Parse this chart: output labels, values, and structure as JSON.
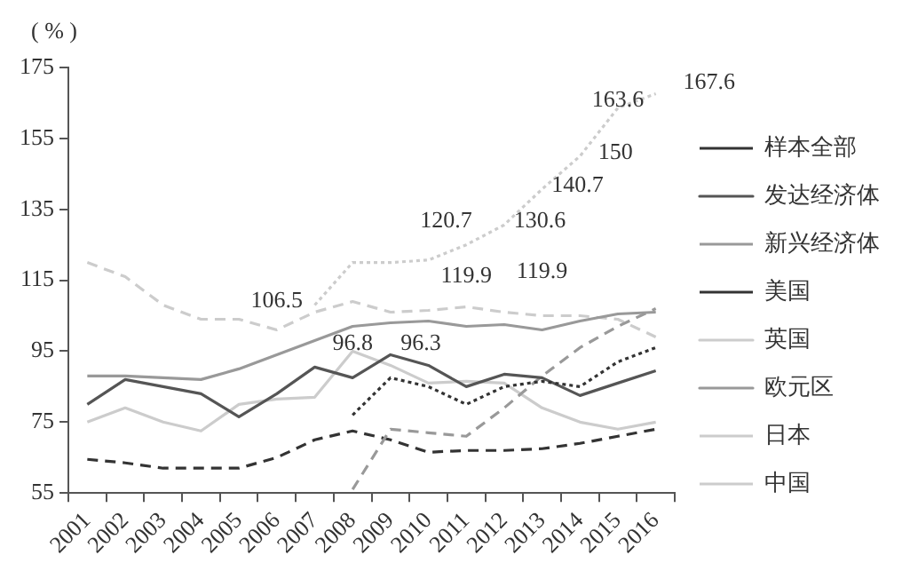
{
  "chart_data": {
    "type": "line",
    "ylabel": "( % )",
    "categories": [
      "2001",
      "2002",
      "2003",
      "2004",
      "2005",
      "2006",
      "2007",
      "2008",
      "2009",
      "2010",
      "2011",
      "2012",
      "2013",
      "2014",
      "2015",
      "2016"
    ],
    "series": [
      {
        "name": "样本全部",
        "color": "#333333",
        "line_style": "dotted",
        "values": [
          null,
          null,
          null,
          null,
          null,
          null,
          null,
          77,
          87.5,
          85,
          80,
          85,
          86.5,
          85,
          92,
          96
        ]
      },
      {
        "name": "发达经济体",
        "color": "#555555",
        "line_style": "solid",
        "values": [
          80,
          87,
          85,
          83,
          76.5,
          83,
          90.5,
          87.5,
          94,
          91,
          85,
          88.5,
          87.5,
          82.5,
          86,
          89.5
        ]
      },
      {
        "name": "新兴经济体",
        "color": "#999999",
        "line_style": "dashed",
        "values": [
          null,
          null,
          null,
          null,
          null,
          null,
          null,
          56,
          73,
          72,
          71,
          79,
          88,
          96,
          102,
          107
        ]
      },
      {
        "name": "美国",
        "color": "#333333",
        "line_style": "dashed",
        "values": [
          64.5,
          63.5,
          62,
          62,
          62,
          65,
          70,
          72.5,
          70,
          66.5,
          67,
          67,
          67.5,
          69,
          71,
          73
        ]
      },
      {
        "name": "英国",
        "color": "#cccccc",
        "line_style": "solid",
        "values": [
          75,
          79,
          75,
          72.5,
          80,
          81.5,
          82,
          95,
          91,
          86,
          86.5,
          86,
          79,
          75,
          73,
          75
        ]
      },
      {
        "name": "欧元区",
        "color": "#999999",
        "line_style": "solid",
        "values": [
          88,
          88,
          87.5,
          87,
          90,
          94,
          98,
          102,
          103,
          103.5,
          102,
          102.5,
          101,
          103.5,
          105.5,
          106
        ]
      },
      {
        "name": "日本",
        "color": "#cccccc",
        "line_style": "dashed",
        "values": [
          120,
          116,
          108,
          104,
          104,
          101,
          106,
          109,
          106,
          106.5,
          107.5,
          106,
          105,
          105,
          104,
          99
        ]
      },
      {
        "name": "中国",
        "color": "#cccccc",
        "line_style": "dotted",
        "values": [
          null,
          null,
          null,
          null,
          null,
          null,
          108,
          120,
          120,
          120.7,
          125,
          130.6,
          140.7,
          150,
          163.6,
          167.6
        ]
      }
    ],
    "ylim": [
      55,
      175
    ],
    "yticks": [
      55,
      75,
      95,
      115,
      135,
      155,
      175
    ],
    "grid": false,
    "legend": "right",
    "marker": "none",
    "annotations": [
      "106.5",
      "96.8",
      "96.3",
      "119.9",
      {
        "text": "120.7",
        "x": "2010",
        "y": 120.7
      },
      "119.9",
      {
        "text": "130.6",
        "x": "2012",
        "y": 130.6
      },
      {
        "text": "140.7",
        "x": "2013",
        "y": 140.7
      },
      {
        "text": "150",
        "x": "2014",
        "y": 150
      },
      {
        "text": "163.6",
        "x": "2015",
        "y": 163.6
      },
      {
        "text": "167.6",
        "x": "2016",
        "y": 167.6
      }
    ]
  }
}
